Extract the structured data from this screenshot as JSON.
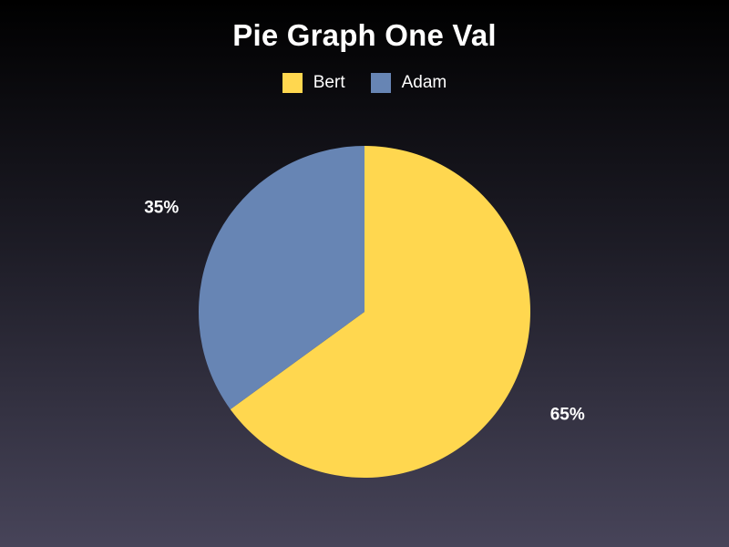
{
  "chart_data": {
    "type": "pie",
    "title": "Pie Graph One Val",
    "legend_position": "top",
    "series": [
      {
        "name": "Bert",
        "value": 65,
        "label": "65%",
        "color": "#ffd74f"
      },
      {
        "name": "Adam",
        "value": 35,
        "label": "35%",
        "color": "#6785b4"
      }
    ]
  }
}
